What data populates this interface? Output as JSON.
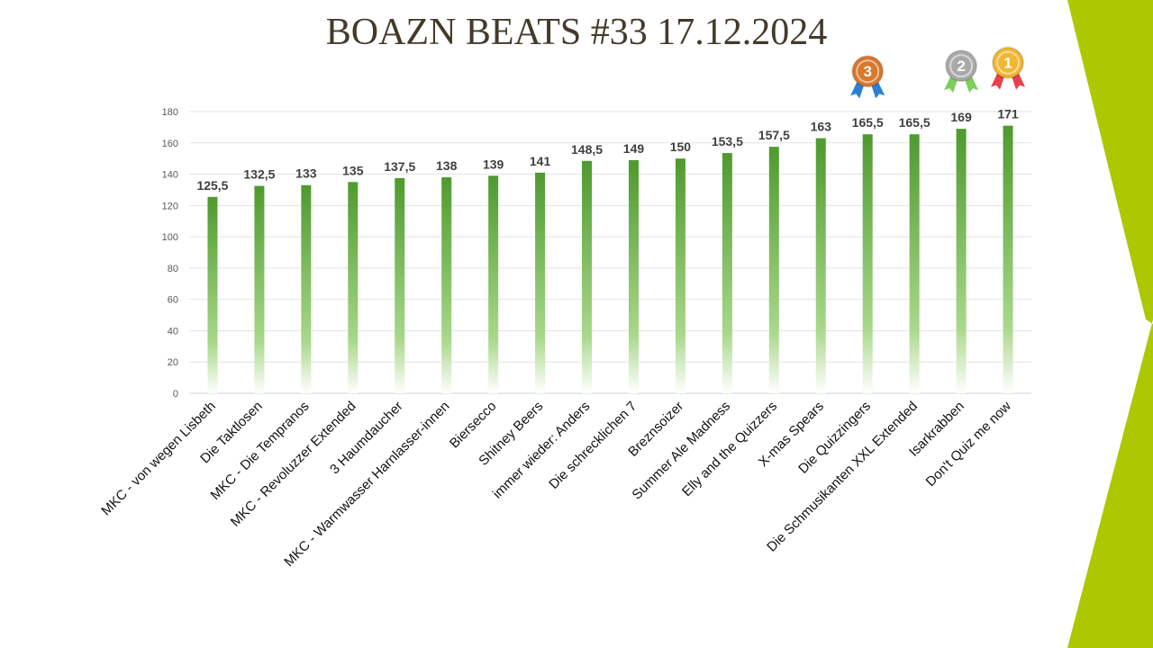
{
  "title": "BOAZN BEATS #33 17.12.2024",
  "colors": {
    "bar_top": "#4e9a2e",
    "bar_bottom": "#a8d88a",
    "accent": "#adc800",
    "title": "#433a2a"
  },
  "medals": [
    {
      "rank": "3",
      "category": "Die Quizzingers",
      "color": "#d9782e",
      "ribbon": "#2b7fd4"
    },
    {
      "rank": "2",
      "category": "Isarkrabben",
      "color": "#a9a9a9",
      "ribbon": "#7ccf5a"
    },
    {
      "rank": "1",
      "category": "Don't Quiz me now",
      "color": "#f2b632",
      "ribbon": "#e8404a"
    }
  ],
  "chart_data": {
    "type": "bar",
    "title": "BOAZN BEATS #33 17.12.2024",
    "categories": [
      "MKC - von wegen Lisbeth",
      "Die Taktlosen",
      "MKC - Die Tempranos",
      "MKC - Revoluzzer Extended",
      "3 Haumdaucher",
      "MKC - Warmwasser Harnlasser-innen",
      "Biersecco",
      "Shitney Beers",
      "immer wieder: Anders",
      "Die schrecklichen 7",
      "Breznsoizer",
      "Summer Ale Madness",
      "Elly and the Quizzers",
      "X-mas Spears",
      "Die Quizzingers",
      "Die Schmusikanten XXL Extended",
      "Isarkrabben",
      "Don't Quiz me now"
    ],
    "values": [
      125.5,
      132.5,
      133,
      135,
      137.5,
      138,
      139,
      141,
      148.5,
      149,
      150,
      153.5,
      157.5,
      163,
      165.5,
      165.5,
      169,
      171
    ],
    "data_labels": [
      "125,5",
      "132,5",
      "133",
      "135",
      "137,5",
      "138",
      "139",
      "141",
      "148,5",
      "149",
      "150",
      "153,5",
      "157,5",
      "163",
      "165,5",
      "165,5",
      "169",
      "171"
    ],
    "yticks": [
      "0",
      "20",
      "40",
      "60",
      "80",
      "100",
      "120",
      "140",
      "160",
      "180"
    ],
    "ylim": [
      0,
      180
    ],
    "grid": true,
    "legend": "none"
  }
}
